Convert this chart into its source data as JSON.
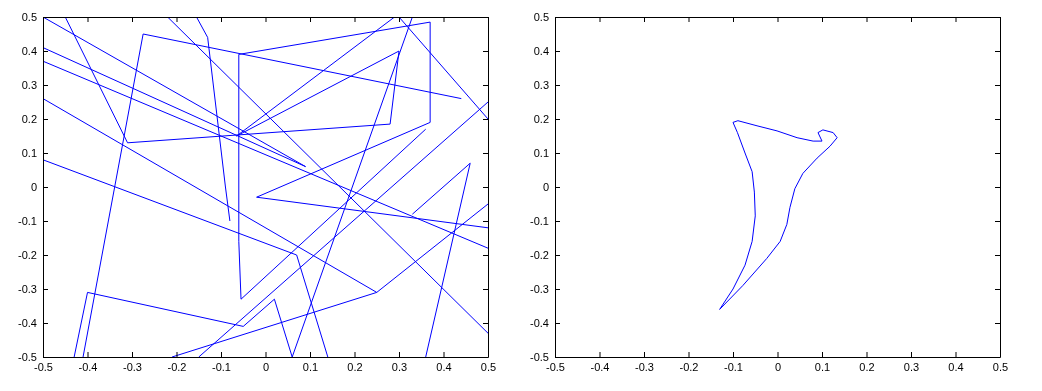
{
  "chart_data": [
    {
      "type": "line",
      "xlim": [
        -0.5,
        0.5
      ],
      "ylim": [
        -0.5,
        0.5
      ],
      "xticks": [
        -0.5,
        -0.4,
        -0.3,
        -0.2,
        -0.1,
        0,
        0.1,
        0.2,
        0.3,
        0.4,
        0.5
      ],
      "yticks": [
        -0.5,
        -0.4,
        -0.3,
        -0.2,
        -0.1,
        0,
        0.1,
        0.2,
        0.3,
        0.4,
        0.5
      ],
      "grid": false,
      "line_style": "solid",
      "series": [
        {
          "color": "#0000ff",
          "x": [
            -0.41,
            -0.275,
            0.44
          ],
          "values": [
            -0.5,
            0.45,
            0.26
          ]
        },
        {
          "color": "#0000ff",
          "x": [
            -0.45,
            -0.31,
            0.28,
            0.3,
            -0.065,
            0.29
          ],
          "values": [
            0.5,
            0.13,
            0.185,
            0.4,
            0.15,
            0.5
          ]
        },
        {
          "color": "#0000ff",
          "x": [
            -0.06,
            0.37,
            0.37,
            -0.02,
            0.5
          ],
          "values": [
            0.39,
            0.485,
            0.19,
            -0.03,
            -0.12
          ]
        },
        {
          "color": "#0000ff",
          "x": [
            -0.06,
            -0.06,
            -0.055,
            0.36
          ],
          "values": [
            0.39,
            -0.16,
            -0.33,
            0.17
          ]
        },
        {
          "color": "#0000ff",
          "x": [
            -0.5,
            0.09,
            -0.5
          ],
          "values": [
            0.41,
            0.06,
            0.5
          ]
        },
        {
          "color": "#0000ff",
          "x": [
            -0.5,
            0.5
          ],
          "values": [
            0.37,
            -0.18
          ]
        },
        {
          "color": "#0000ff",
          "x": [
            -0.5,
            0.25,
            0.5
          ],
          "values": [
            0.26,
            -0.31,
            -0.05
          ]
        },
        {
          "color": "#0000ff",
          "x": [
            0.25,
            -0.21
          ],
          "values": [
            -0.31,
            -0.5
          ]
        },
        {
          "color": "#0000ff",
          "x": [
            -0.5,
            0.07,
            0.14
          ],
          "values": [
            0.08,
            -0.2,
            -0.5
          ]
        },
        {
          "color": "#0000ff",
          "x": [
            -0.43,
            -0.4,
            -0.05,
            0.02,
            0.06
          ],
          "values": [
            -0.5,
            -0.31,
            -0.41,
            -0.33,
            -0.5
          ]
        },
        {
          "color": "#0000ff",
          "x": [
            0.33,
            0.46,
            0.36
          ],
          "values": [
            -0.08,
            0.07,
            -0.5
          ]
        },
        {
          "color": "#0000ff",
          "x": [
            -0.155,
            -0.13,
            -0.09,
            -0.08
          ],
          "values": [
            0.5,
            0.44,
            0.0,
            -0.1
          ]
        },
        {
          "color": "#0000ff",
          "x": [
            0.3,
            0.5
          ],
          "values": [
            0.5,
            0.2
          ]
        },
        {
          "color": "#0000ff",
          "x": [
            0.33,
            0.06
          ],
          "values": [
            0.5,
            -0.5
          ]
        },
        {
          "color": "#0000ff",
          "x": [
            -0.22,
            0.5
          ],
          "values": [
            0.5,
            -0.43
          ]
        },
        {
          "color": "#0000ff",
          "x": [
            -0.15,
            0.5
          ],
          "values": [
            -0.5,
            0.25
          ]
        }
      ]
    },
    {
      "type": "line",
      "xlim": [
        -0.5,
        0.5
      ],
      "ylim": [
        -0.5,
        0.5
      ],
      "xticks": [
        -0.5,
        -0.4,
        -0.3,
        -0.2,
        -0.1,
        0,
        0.1,
        0.2,
        0.3,
        0.4,
        0.5
      ],
      "yticks": [
        -0.5,
        -0.4,
        -0.3,
        -0.2,
        -0.1,
        0,
        0.1,
        0.2,
        0.3,
        0.4,
        0.5
      ],
      "grid": false,
      "line_style": "solid",
      "series": [
        {
          "color": "#0000ff",
          "x": [
            -0.13,
            -0.1,
            -0.073,
            -0.057,
            -0.05,
            -0.052,
            -0.057,
            -0.073,
            -0.09,
            -0.1,
            -0.089,
            -0.046,
            -0.001,
            0.044,
            0.08,
            0.1,
            0.091,
            0.102,
            0.125,
            0.134
          ],
          "values": [
            -0.36,
            -0.3,
            -0.23,
            -0.16,
            -0.085,
            -0.015,
            0.045,
            0.1,
            0.16,
            0.19,
            0.195,
            0.18,
            0.165,
            0.145,
            0.135,
            0.135,
            0.16,
            0.168,
            0.16,
            0.145
          ]
        },
        {
          "color": "#0000ff",
          "x": [
            0.134,
            0.118,
            0.089,
            0.057,
            0.039,
            0.028,
            0.021,
            0.006,
            -0.024,
            -0.078,
            -0.13
          ],
          "values": [
            0.145,
            0.12,
            0.085,
            0.04,
            -0.005,
            -0.06,
            -0.11,
            -0.16,
            -0.21,
            -0.29,
            -0.36
          ]
        }
      ]
    }
  ]
}
